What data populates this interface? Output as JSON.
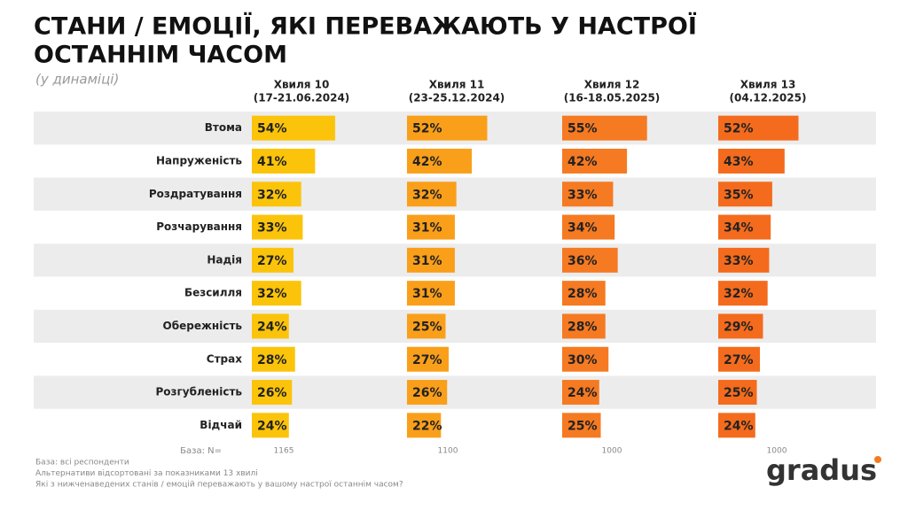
{
  "chart_data": {
    "type": "bar",
    "title": [
      "СТАНИ / ЕМОЦІЇ, ЯКІ ПЕРЕВАЖАЮТЬ У НАСТРОЇ",
      "ОСТАННІМ ЧАСОМ"
    ],
    "subtitle": "(у динаміці)",
    "categories": [
      "Втома",
      "Напруженість",
      "Роздратування",
      "Розчарування",
      "Надія",
      "Безсилля",
      "Обережність",
      "Страх",
      "Розгубленість",
      "Відчай"
    ],
    "series": [
      {
        "name": "Хвиля 10",
        "period": "(17-21.06.2024)",
        "color": "#fbc40b",
        "base_n": 1165,
        "values": [
          54,
          41,
          32,
          33,
          27,
          32,
          24,
          28,
          26,
          24
        ],
        "value_labels": [
          "54%",
          "41%",
          "32%",
          "33%",
          "27%",
          "32%",
          "24%",
          "28%",
          "26%",
          "24%"
        ]
      },
      {
        "name": "Хвиля 11",
        "period": "(23-25.12.2024)",
        "color": "#fa9f1a",
        "base_n": 1100,
        "values": [
          52,
          42,
          32,
          31,
          31,
          31,
          25,
          27,
          26,
          22
        ],
        "value_labels": [
          "52%",
          "42%",
          "32%",
          "31%",
          "31%",
          "31%",
          "25%",
          "27%",
          "26%",
          "22%"
        ]
      },
      {
        "name": "Хвиля 12",
        "period": "(16-18.05.2025)",
        "color": "#f57a22",
        "base_n": 1000,
        "values": [
          55,
          42,
          33,
          34,
          36,
          28,
          28,
          30,
          24,
          25
        ],
        "value_labels": [
          "55%",
          "42%",
          "33%",
          "34%",
          "36%",
          "28%",
          "28%",
          "30%",
          "24%",
          "25%"
        ]
      },
      {
        "name": "Хвиля 13",
        "period": "(04.12.2025)",
        "color": "#f46b1d",
        "base_n": 1000,
        "values": [
          52,
          43,
          35,
          34,
          33,
          32,
          29,
          27,
          25,
          24
        ],
        "value_labels": [
          "52%",
          "43%",
          "35%",
          "34%",
          "33%",
          "32%",
          "29%",
          "27%",
          "25%",
          "24%"
        ]
      }
    ],
    "base_label": "База: N=",
    "footnotes": [
      "База: всі респонденти",
      "Альтернативи відсортовані за показниками 13 хвилі",
      "Які з нижченаведених станів / емоцій переважають у вашому настрої останнім часом?"
    ],
    "logo": "gradus"
  }
}
